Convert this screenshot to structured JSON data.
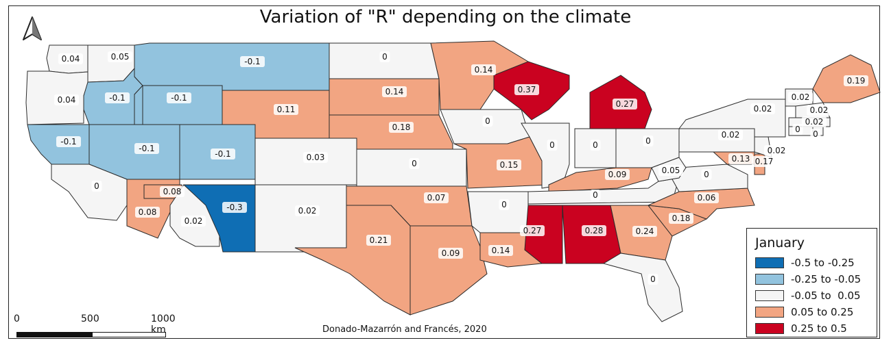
{
  "title": "Variation of \"R\" depending on the climate",
  "legend": {
    "title": "January",
    "classes": [
      {
        "label": "-0.5 to -0.25",
        "color": "#0f6eb4"
      },
      {
        "label": "-0.25 to -0.05",
        "color": "#92c3de"
      },
      {
        "label": "-0.05 to  0.05",
        "color": "#f5f5f5"
      },
      {
        "label": "0.05 to 0.25",
        "color": "#f2a582"
      },
      {
        "label": "0.25 to 0.5",
        "color": "#ca0220"
      }
    ]
  },
  "scale_bar": {
    "ticks": [
      "0",
      "500",
      "1000 km"
    ]
  },
  "credit": "Donado-Mazarrón and Francés, 2020",
  "north_arrow": {
    "icon": "north-arrow-icon"
  },
  "regions": [
    {
      "id": "WA",
      "value": "0.04",
      "class": 2
    },
    {
      "id": "OR",
      "value": "0.04",
      "class": 2
    },
    {
      "id": "CA",
      "value": "-0.1",
      "class": 1
    },
    {
      "id": "ID-N",
      "value": "0.05",
      "class": 2
    },
    {
      "id": "ID",
      "value": "-0.1",
      "class": 1
    },
    {
      "id": "NV",
      "value": "-0.1",
      "class": 1
    },
    {
      "id": "MT",
      "value": "-0.1",
      "class": 1
    },
    {
      "id": "WY-W",
      "value": "-0.1",
      "class": 1
    },
    {
      "id": "UT",
      "value": "-0.1",
      "class": 1
    },
    {
      "id": "WY",
      "value": "0.11",
      "class": 3
    },
    {
      "id": "CO",
      "value": "0.03",
      "class": 2
    },
    {
      "id": "CA-S",
      "value": "0",
      "class": 2
    },
    {
      "id": "AZ-W",
      "value": "0.08",
      "class": 3
    },
    {
      "id": "AZ-NW",
      "value": "0.08",
      "class": 3
    },
    {
      "id": "AZ",
      "value": "0.02",
      "class": 2
    },
    {
      "id": "NM-W",
      "value": "-0.3",
      "class": 0
    },
    {
      "id": "NM",
      "value": "0.02",
      "class": 2
    },
    {
      "id": "ND",
      "value": "0",
      "class": 2
    },
    {
      "id": "SD-N",
      "value": "0.14",
      "class": 3
    },
    {
      "id": "NE",
      "value": "0.18",
      "class": 3
    },
    {
      "id": "KS",
      "value": "0",
      "class": 2
    },
    {
      "id": "OK",
      "value": "0.07",
      "class": 3
    },
    {
      "id": "TX",
      "value": "0.21",
      "class": 3
    },
    {
      "id": "TX-E",
      "value": "0.09",
      "class": 3
    },
    {
      "id": "MN",
      "value": "0.14",
      "class": 3
    },
    {
      "id": "IA",
      "value": "0",
      "class": 2
    },
    {
      "id": "MO",
      "value": "0.15",
      "class": 3
    },
    {
      "id": "AR",
      "value": "0",
      "class": 2
    },
    {
      "id": "LA",
      "value": "0.14",
      "class": 3
    },
    {
      "id": "WI",
      "value": "0.37",
      "class": 4
    },
    {
      "id": "IL",
      "value": "0",
      "class": 2
    },
    {
      "id": "MI",
      "value": "0.27",
      "class": 4
    },
    {
      "id": "IN",
      "value": "0",
      "class": 2
    },
    {
      "id": "OH",
      "value": "0",
      "class": 2
    },
    {
      "id": "KY",
      "value": "0.09",
      "class": 3
    },
    {
      "id": "TN",
      "value": "0",
      "class": 2
    },
    {
      "id": "MS",
      "value": "0.27",
      "class": 4
    },
    {
      "id": "AL",
      "value": "0.28",
      "class": 4
    },
    {
      "id": "GA",
      "value": "0.24",
      "class": 3
    },
    {
      "id": "FL",
      "value": "0",
      "class": 2
    },
    {
      "id": "SC",
      "value": "0.18",
      "class": 3
    },
    {
      "id": "NC",
      "value": "0.06",
      "class": 3
    },
    {
      "id": "VA",
      "value": "0",
      "class": 2
    },
    {
      "id": "WV",
      "value": "0.05",
      "class": 2
    },
    {
      "id": "PA",
      "value": "0.02",
      "class": 2
    },
    {
      "id": "NY",
      "value": "0.02",
      "class": 2
    },
    {
      "id": "MD",
      "value": "0.13",
      "class": 3
    },
    {
      "id": "DE",
      "value": "0.17",
      "class": 3
    },
    {
      "id": "NJ",
      "value": "0.02",
      "class": 2
    },
    {
      "id": "VT",
      "value": "0.02",
      "class": 2
    },
    {
      "id": "NH",
      "value": "0.02",
      "class": 2
    },
    {
      "id": "MA",
      "value": "0.02",
      "class": 2
    },
    {
      "id": "CT",
      "value": "0",
      "class": 2
    },
    {
      "id": "RI",
      "value": "0",
      "class": 2
    },
    {
      "id": "ME",
      "value": "0.19",
      "class": 3
    }
  ]
}
